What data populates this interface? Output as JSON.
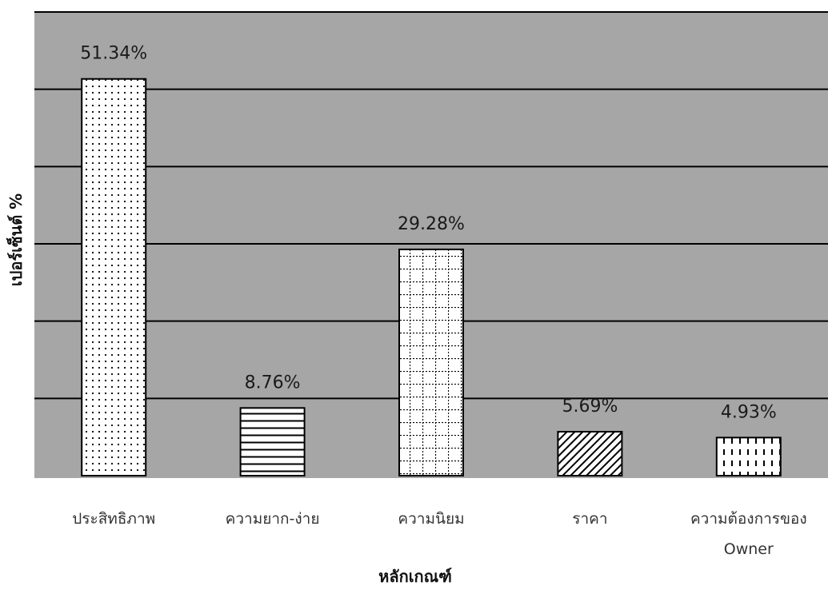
{
  "chart_data": {
    "type": "bar",
    "title": "",
    "xlabel": "หลักเกณฑ์",
    "ylabel": "เปอร์เซ็นต์ %",
    "categories": [
      [
        "ประสิทธิภาพ"
      ],
      [
        "ความยาก-ง่าย"
      ],
      [
        "ความนิยม"
      ],
      [
        "ราคา"
      ],
      [
        "ความต้องการของ",
        "Owner"
      ]
    ],
    "values": [
      51.34,
      8.76,
      29.28,
      5.69,
      4.93
    ],
    "value_labels": [
      "51.34%",
      "8.76%",
      "29.28%",
      "5.69%",
      "4.93%"
    ],
    "patterns": [
      "dots",
      "horizontal-lines",
      "grid",
      "diagonal-hatch",
      "vertical-dashes"
    ],
    "ylim": [
      0,
      60
    ],
    "grid": true,
    "legend": false,
    "colors": {
      "plot_background": "#a6a6a6",
      "bar_fill": "#ffffff",
      "bar_stroke": "#000000",
      "gridline": "#000000"
    }
  }
}
